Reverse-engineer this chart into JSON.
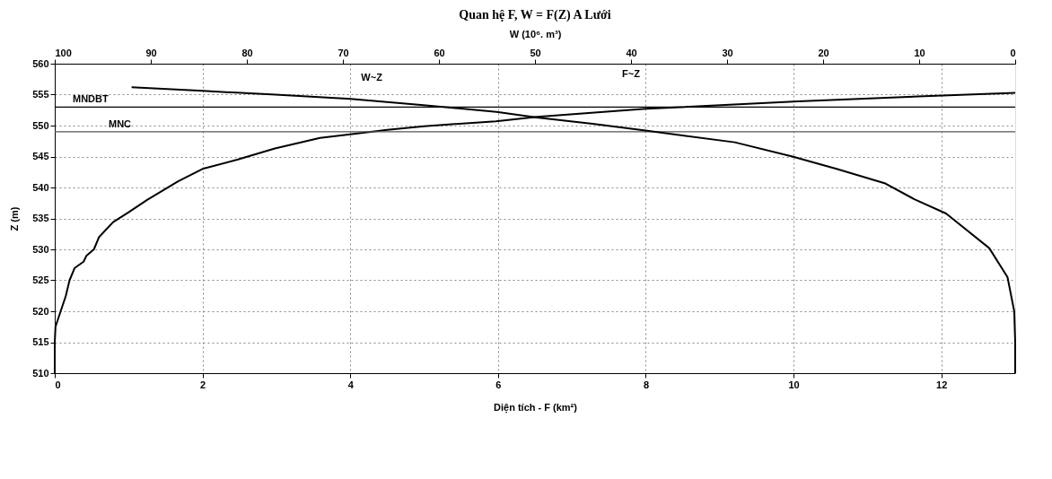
{
  "chart_data": {
    "type": "line",
    "title": "Quan hệ F, W = F(Z) A Lưới",
    "xlabel": "Diện tích - F (km²)",
    "ylabel": "Z (m)",
    "x2label": "W (10⁶. m³)",
    "xlim": [
      0,
      13
    ],
    "xticks": [
      0,
      2,
      4,
      6,
      8,
      10,
      12
    ],
    "x2lim": [
      100,
      0
    ],
    "x2ticks": [
      100,
      90,
      80,
      70,
      60,
      50,
      40,
      30,
      20,
      10,
      0
    ],
    "ylim": [
      510,
      560
    ],
    "yticks": [
      510,
      515,
      520,
      525,
      530,
      535,
      540,
      545,
      550,
      555,
      560
    ],
    "grid": true,
    "marker": "none",
    "line_style": "solid",
    "series": [
      {
        "color": "#000000",
        "x": [
          0,
          0,
          0.01,
          0.08,
          0.15,
          0.2,
          0.27,
          0.39,
          0.43,
          0.53,
          0.6,
          0.79,
          1.0,
          1.25,
          1.67,
          2.0,
          2.47,
          2.98,
          3.59,
          4.0,
          4.5,
          5.0,
          5.97,
          6.53,
          8.0,
          10.06,
          12.1,
          13
        ],
        "values": [
          510,
          515,
          517.5,
          520,
          522.5,
          525,
          527,
          528,
          529,
          530,
          532,
          534.4,
          536,
          538,
          541,
          543,
          544.5,
          546.3,
          548,
          548.6,
          549.3,
          549.9,
          550.7,
          551.4,
          552.7,
          553.9,
          554.9,
          555.3
        ]
      },
      {
        "color": "#000000",
        "axis": "x2",
        "x": [
          92,
          84.6,
          77,
          69.2,
          61.6,
          54,
          49.8,
          44,
          38.5,
          29.2,
          23.2,
          18.6,
          13.6,
          10.5,
          7.2,
          2.7,
          0.8,
          0.1,
          0,
          0
        ],
        "values": [
          556.2,
          555.6,
          555,
          554.3,
          553.3,
          552.2,
          551.3,
          550.3,
          549.2,
          547.3,
          545,
          543,
          540.7,
          538.1,
          535.8,
          530.2,
          525.5,
          520,
          515,
          510
        ]
      }
    ],
    "ref_lines": [
      {
        "axis": "y",
        "value": 553,
        "label": "MNDBT",
        "color": "#000000"
      },
      {
        "axis": "y",
        "value": 549,
        "label": "MNC",
        "color": "#555555"
      }
    ],
    "annotations": [
      "W~Z",
      "F~Z"
    ]
  }
}
